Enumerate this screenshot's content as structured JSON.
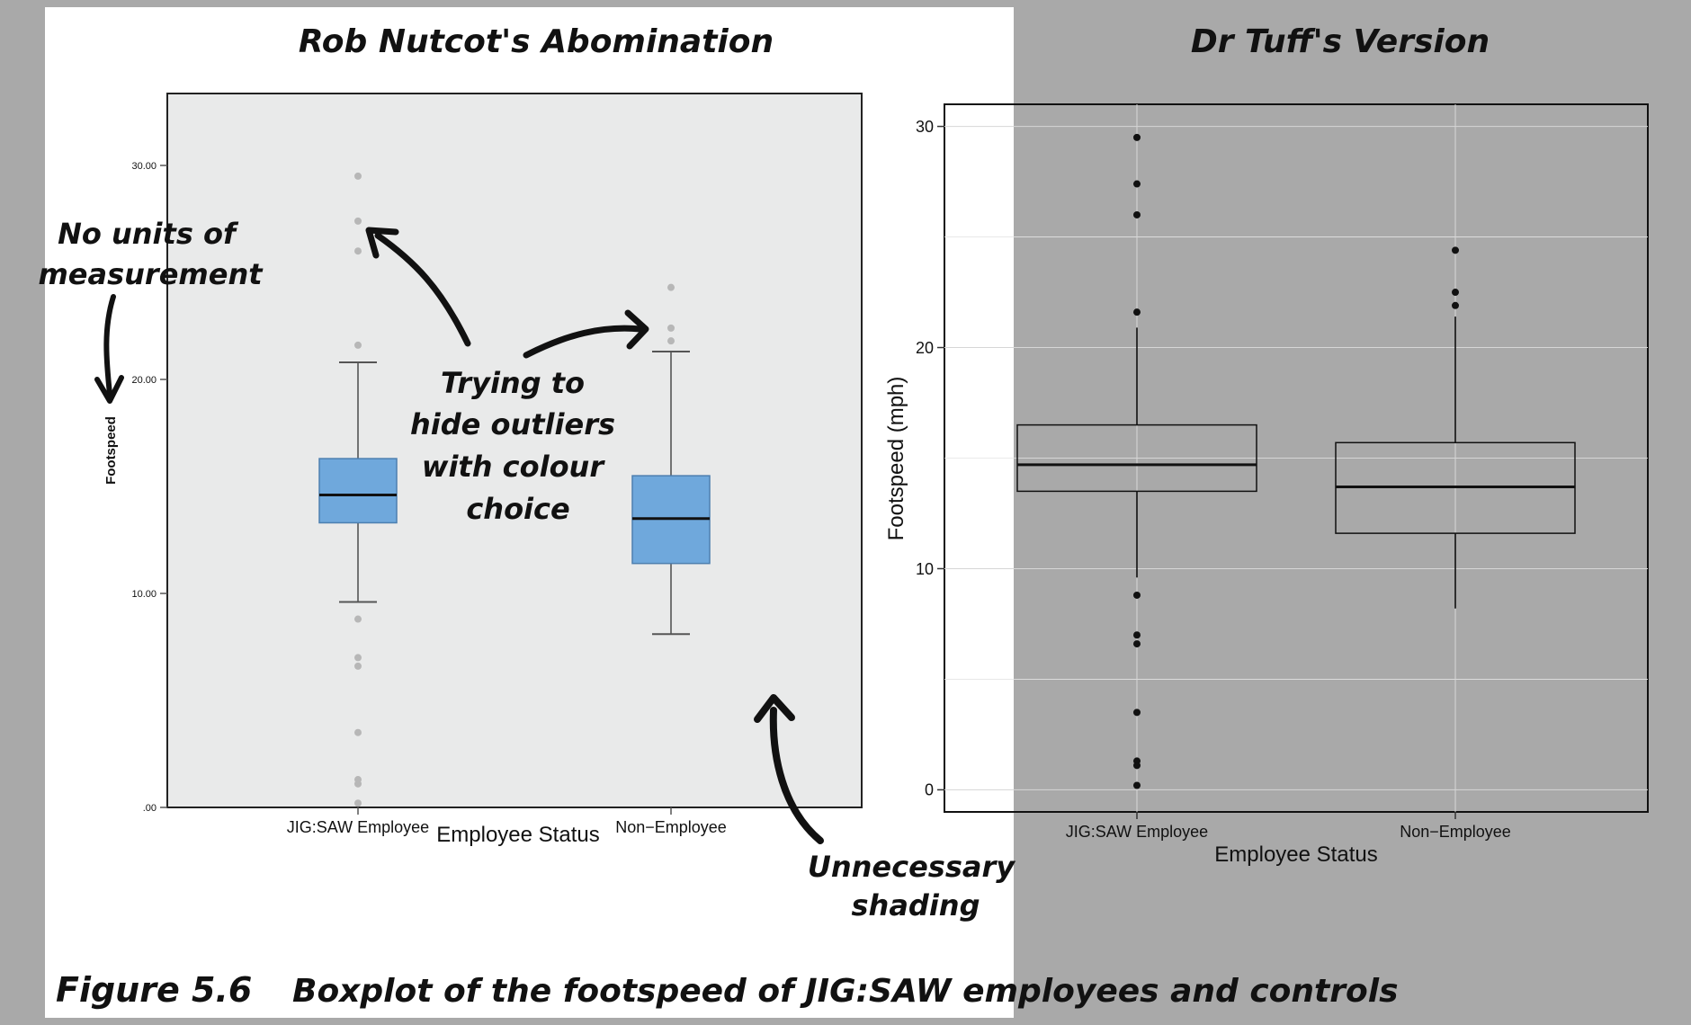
{
  "figure": {
    "label": "Figure 5.6",
    "caption": "Boxplot of the footspeed of JIG:SAW employees and controls",
    "label_color": "#f37021"
  },
  "annotations": {
    "no_units_line1": "No units of",
    "no_units_line2": "measurement",
    "hide_line1": "Trying to",
    "hide_line2": "hide outliers",
    "hide_line3": "with colour",
    "hide_line4": "choice",
    "shading_line1": "Unnecessary",
    "shading_line2": "shading"
  },
  "chart_data": [
    {
      "type": "boxplot",
      "title": "Rob Nutcot's Abomination",
      "xlabel": "Employee Status",
      "ylabel": "Footspeed",
      "ylim": [
        0,
        30
      ],
      "y_ticks": [
        0,
        10,
        20,
        30
      ],
      "y_tick_labels": [
        ".00",
        "10.00",
        "20.00",
        "30.00"
      ],
      "grid": false,
      "background": "#e9eaea",
      "box_color": "#6fa8dc",
      "outlier_color": "#b7b7b7",
      "categories": [
        "JIG:SAW Employee",
        "Non−Employee"
      ],
      "boxes": [
        {
          "whisker_low": 9.6,
          "q1": 13.3,
          "median": 14.6,
          "q3": 16.3,
          "whisker_high": 20.8,
          "outliers": [
            29.5,
            27.4,
            26.0,
            21.6,
            8.8,
            7.0,
            6.6,
            3.5,
            1.3,
            1.1,
            0.2
          ]
        },
        {
          "whisker_low": 8.1,
          "q1": 11.4,
          "median": 13.5,
          "q3": 15.5,
          "whisker_high": 21.3,
          "outliers": [
            24.3,
            22.4,
            21.8
          ]
        }
      ]
    },
    {
      "type": "boxplot",
      "title": "Dr Tuff's Version",
      "xlabel": "Employee Status",
      "ylabel": "Footspeed (mph)",
      "ylim": [
        -1,
        31
      ],
      "y_ticks": [
        0,
        10,
        20,
        30
      ],
      "y_tick_labels": [
        "0",
        "10",
        "20",
        "30"
      ],
      "grid": true,
      "categories": [
        "JIG:SAW Employee",
        "Non−Employee"
      ],
      "boxes": [
        {
          "whisker_low": 9.6,
          "q1": 13.5,
          "median": 14.7,
          "q3": 16.5,
          "whisker_high": 20.9,
          "outliers": [
            29.5,
            27.4,
            26.0,
            21.6,
            8.8,
            7.0,
            6.6,
            3.5,
            1.3,
            1.1,
            0.2
          ]
        },
        {
          "whisker_low": 8.2,
          "q1": 11.6,
          "median": 13.7,
          "q3": 15.7,
          "whisker_high": 21.4,
          "outliers": [
            24.4,
            22.5,
            21.9
          ]
        }
      ]
    }
  ]
}
